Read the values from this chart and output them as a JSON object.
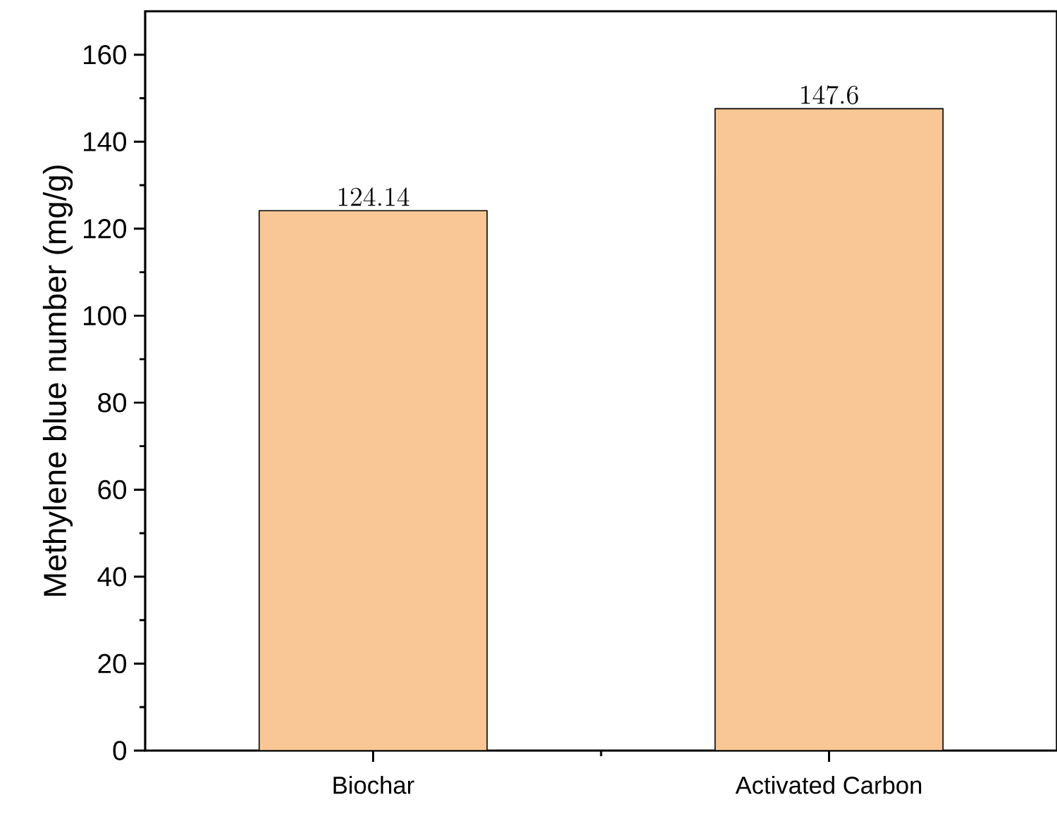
{
  "chart_data": {
    "type": "bar",
    "ylabel": "Methylene blue number (mg/g)",
    "categories": [
      "Biochar",
      "Activated Carbon"
    ],
    "values": [
      124.14,
      147.6
    ],
    "color": "#f9c695",
    "ylim": [
      0,
      170
    ],
    "yticks": [
      0,
      20,
      40,
      60,
      80,
      100,
      120,
      140,
      160
    ],
    "data_labels": true
  }
}
